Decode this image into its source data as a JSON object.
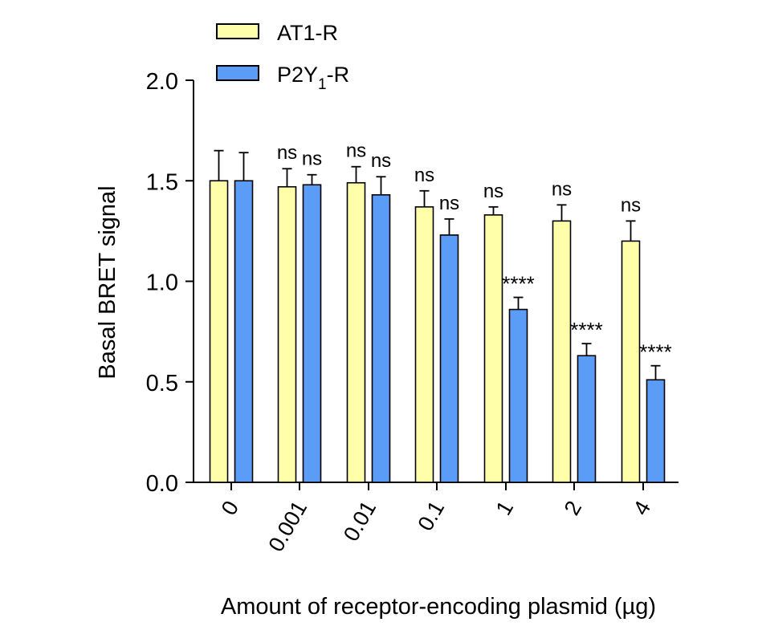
{
  "chart_data": {
    "type": "bar",
    "xlabel": "Amount of receptor-encoding plasmid (µg)",
    "ylabel": "Basal BRET signal",
    "ylim": [
      0,
      2.0
    ],
    "yticks": [
      "0.0",
      "0.5",
      "1.0",
      "1.5",
      "2.0"
    ],
    "yticks_values": [
      0,
      0.5,
      1.0,
      1.5,
      2.0
    ],
    "categories": [
      "0",
      "0.001",
      "0.01",
      "0.1",
      "1",
      "2",
      "4"
    ],
    "legend": {
      "placement": "top-left"
    },
    "series": [
      {
        "name": "AT1-R",
        "legend_main": "AT1-R",
        "legend_sub": "",
        "legend_suffix": "",
        "color": "#ffffaa",
        "values": [
          1.5,
          1.47,
          1.49,
          1.37,
          1.33,
          1.3,
          1.2
        ],
        "errors": [
          0.15,
          0.09,
          0.08,
          0.08,
          0.04,
          0.08,
          0.1
        ],
        "annotations": [
          "",
          "ns",
          "ns",
          "ns",
          "ns",
          "ns",
          "ns"
        ]
      },
      {
        "name": "P2Y1-R",
        "legend_main": "P2Y",
        "legend_sub": "1",
        "legend_suffix": "-R",
        "color": "#5b9cf6",
        "values": [
          1.5,
          1.48,
          1.43,
          1.23,
          0.86,
          0.63,
          0.51
        ],
        "errors": [
          0.14,
          0.05,
          0.09,
          0.08,
          0.06,
          0.06,
          0.07
        ],
        "annotations": [
          "",
          "ns",
          "ns",
          "ns",
          "****",
          "****",
          "****"
        ]
      }
    ]
  }
}
